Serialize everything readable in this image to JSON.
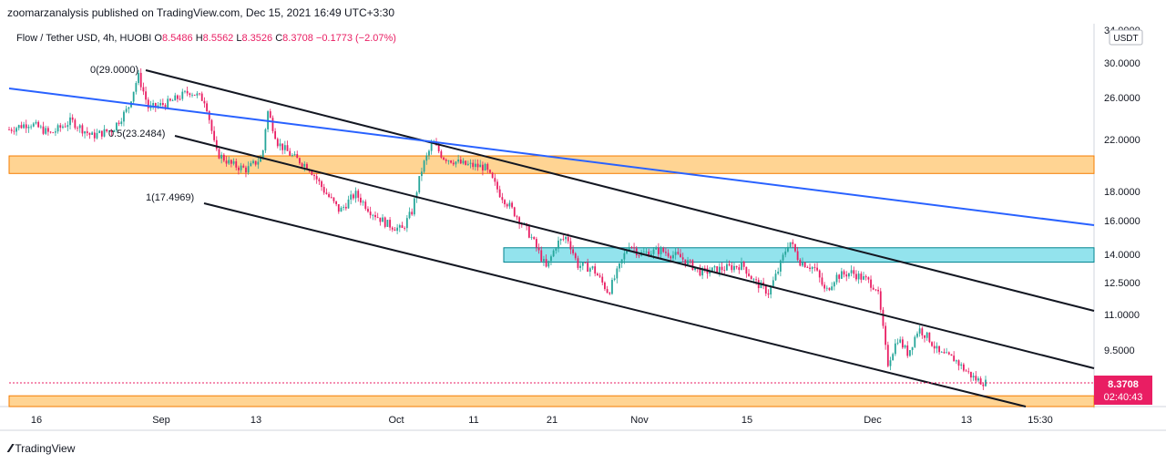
{
  "header": {
    "credit": "zoomarzanalysis published on TradingView.com, Dec 15, 2021 16:49 UTC+3:30"
  },
  "legend": {
    "symbol": "Flow / Tether USD, 4h, HUOBI",
    "open_label": "O",
    "open": "8.5486",
    "high_label": "H",
    "high": "8.5562",
    "low_label": "L",
    "low": "8.3526",
    "close_label": "C",
    "close": "8.3708",
    "change": "−0.1773 (−2.07%)"
  },
  "currency_badge": "USDT",
  "price_label": {
    "value": "8.3708",
    "countdown": "02:40:43",
    "color": "#e91e63"
  },
  "footer": {
    "brand": "TradingView"
  },
  "colors": {
    "candle_up": "#26a69a",
    "candle_down": "#e91e63",
    "channel": "#131722",
    "trendline": "#2962ff",
    "zone_orange": "#ffcc80",
    "zone_orange_border": "#f57c00",
    "zone_cyan": "#80deea",
    "zone_cyan_border": "#00838f"
  },
  "chart_data": {
    "type": "candlestick",
    "symbol": "Flow / Tether USD",
    "timeframe": "4h",
    "exchange": "HUOBI",
    "y_scale": "log",
    "ylim": [
      7.6,
      34.0
    ],
    "x_ticks": [
      "16",
      "Sep",
      "13",
      "Oct",
      "11",
      "21",
      "Nov",
      "15",
      "Dec",
      "13",
      "15:30"
    ],
    "y_ticks": [
      "34.0000",
      "30.0000",
      "26.0000",
      "22.0000",
      "18.0000",
      "16.0000",
      "14.0000",
      "12.5000",
      "11.0000",
      "9.5000",
      "8.3708"
    ],
    "price_path": [
      {
        "t": 0,
        "p": 23.0
      },
      {
        "t": 4,
        "p": 23.6
      },
      {
        "t": 8,
        "p": 22.6
      },
      {
        "t": 12,
        "p": 23.8
      },
      {
        "t": 16,
        "p": 22.4
      },
      {
        "t": 20,
        "p": 23.0
      },
      {
        "t": 23,
        "p": 25.0
      },
      {
        "t": 25,
        "p": 28.5
      },
      {
        "t": 27,
        "p": 25.0
      },
      {
        "t": 31,
        "p": 25.6
      },
      {
        "t": 35,
        "p": 26.8
      },
      {
        "t": 38,
        "p": 25.8
      },
      {
        "t": 40,
        "p": 21.0
      },
      {
        "t": 43,
        "p": 20.0
      },
      {
        "t": 46,
        "p": 19.6
      },
      {
        "t": 49,
        "p": 20.6
      },
      {
        "t": 50,
        "p": 24.8
      },
      {
        "t": 52,
        "p": 21.8
      },
      {
        "t": 55,
        "p": 20.6
      },
      {
        "t": 58,
        "p": 19.8
      },
      {
        "t": 61,
        "p": 18.0
      },
      {
        "t": 64,
        "p": 16.6
      },
      {
        "t": 67,
        "p": 17.8
      },
      {
        "t": 70,
        "p": 16.6
      },
      {
        "t": 73,
        "p": 15.8
      },
      {
        "t": 76,
        "p": 15.4
      },
      {
        "t": 78,
        "p": 16.6
      },
      {
        "t": 80,
        "p": 19.8
      },
      {
        "t": 82,
        "p": 21.8
      },
      {
        "t": 84,
        "p": 20.6
      },
      {
        "t": 88,
        "p": 20.0
      },
      {
        "t": 92,
        "p": 19.8
      },
      {
        "t": 95,
        "p": 17.8
      },
      {
        "t": 98,
        "p": 16.4
      },
      {
        "t": 101,
        "p": 15.0
      },
      {
        "t": 104,
        "p": 13.2
      },
      {
        "t": 106,
        "p": 14.6
      },
      {
        "t": 108,
        "p": 15.0
      },
      {
        "t": 110,
        "p": 13.4
      },
      {
        "t": 113,
        "p": 13.2
      },
      {
        "t": 116,
        "p": 12.0
      },
      {
        "t": 118,
        "p": 13.2
      },
      {
        "t": 120,
        "p": 14.6
      },
      {
        "t": 122,
        "p": 14.0
      },
      {
        "t": 126,
        "p": 14.2
      },
      {
        "t": 130,
        "p": 13.8
      },
      {
        "t": 134,
        "p": 13.0
      },
      {
        "t": 138,
        "p": 13.2
      },
      {
        "t": 142,
        "p": 13.4
      },
      {
        "t": 144,
        "p": 12.6
      },
      {
        "t": 147,
        "p": 12.0
      },
      {
        "t": 149,
        "p": 13.2
      },
      {
        "t": 151,
        "p": 14.8
      },
      {
        "t": 153,
        "p": 13.6
      },
      {
        "t": 156,
        "p": 13.2
      },
      {
        "t": 158,
        "p": 12.0
      },
      {
        "t": 160,
        "p": 12.8
      },
      {
        "t": 163,
        "p": 13.0
      },
      {
        "t": 166,
        "p": 12.6
      },
      {
        "t": 168,
        "p": 12.2
      },
      {
        "t": 170,
        "p": 9.0
      },
      {
        "t": 172,
        "p": 10.0
      },
      {
        "t": 174,
        "p": 9.4
      },
      {
        "t": 176,
        "p": 10.4
      },
      {
        "t": 178,
        "p": 10.0
      },
      {
        "t": 180,
        "p": 9.4
      },
      {
        "t": 183,
        "p": 9.2
      },
      {
        "t": 185,
        "p": 8.8
      },
      {
        "t": 187,
        "p": 8.5
      },
      {
        "t": 189,
        "p": 8.37
      }
    ],
    "annotations": [
      {
        "label": "0(29.0000)",
        "price": 29.0
      },
      {
        "label": "0.5(23.2484)",
        "price": 23.2484
      },
      {
        "label": "1(17.4969)",
        "price": 17.4969
      }
    ],
    "zones": [
      {
        "name": "upper-resistance-zone",
        "low": 19.3,
        "high": 20.7,
        "color": "orange"
      },
      {
        "name": "mid-zone",
        "low": 13.55,
        "high": 14.35,
        "color": "cyan"
      },
      {
        "name": "bottom-support-zone",
        "low": 7.6,
        "high": 7.95,
        "color": "orange"
      }
    ],
    "last_price": 8.3708
  }
}
